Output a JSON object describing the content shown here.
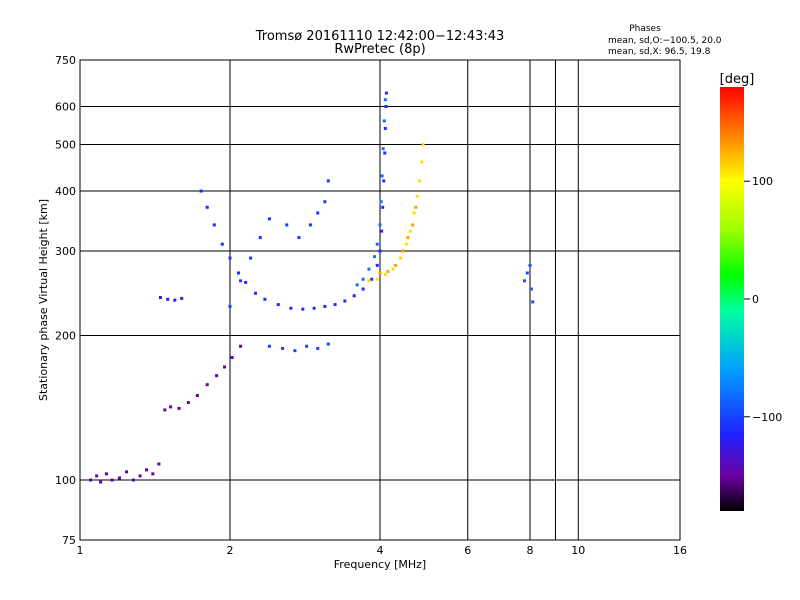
{
  "header": {
    "title": "Tromsø 20161110 12:42:00−12:43:43",
    "subtitle": "RwPretec (8p)",
    "stats_title": "Phases",
    "stats_o": "mean, sd,O:−100.5, 20.0",
    "stats_x": "mean, sd,X:  96.5, 19.8"
  },
  "colorbar": {
    "label": "[deg]",
    "min": -180,
    "max": 180,
    "ticks": [
      100,
      0,
      -100
    ],
    "tick_labels": [
      "100",
      "0",
      "−100"
    ],
    "stops": [
      {
        "v": -180,
        "c": "#000000"
      },
      {
        "v": -150,
        "c": "#6a00a0"
      },
      {
        "v": -115,
        "c": "#2020ff"
      },
      {
        "v": -60,
        "c": "#00a0ff"
      },
      {
        "v": -10,
        "c": "#00ffa0"
      },
      {
        "v": 20,
        "c": "#00ff00"
      },
      {
        "v": 60,
        "c": "#a0ff00"
      },
      {
        "v": 100,
        "c": "#ffff00"
      },
      {
        "v": 140,
        "c": "#ff8000"
      },
      {
        "v": 180,
        "c": "#ff0000"
      }
    ]
  },
  "chart_data": {
    "type": "scatter",
    "xlabel": "Frequency [MHz]",
    "ylabel": "Stationary phase Virtual Height [km]",
    "x_scale": "log",
    "y_scale": "log",
    "xlim": [
      1,
      16
    ],
    "ylim": [
      75,
      750
    ],
    "grid": true,
    "x_ticks": [
      1,
      2,
      4,
      6,
      8,
      10,
      16
    ],
    "x_tick_labels": [
      "1",
      "2",
      "4",
      "6",
      "8",
      "10",
      "16"
    ],
    "x_grid": [
      2,
      4,
      6,
      8,
      9,
      10
    ],
    "y_ticks": [
      75,
      100,
      200,
      300,
      400,
      500,
      600,
      750
    ],
    "y_tick_labels": [
      "75",
      "100",
      "200",
      "300",
      "400",
      "500",
      "600",
      "750"
    ],
    "y_grid": [
      100,
      200,
      300,
      400,
      500,
      600
    ],
    "series": [
      {
        "phase": -145,
        "points": [
          [
            1.05,
            100
          ],
          [
            1.08,
            102
          ],
          [
            1.1,
            99
          ],
          [
            1.13,
            103
          ],
          [
            1.16,
            100
          ],
          [
            1.2,
            101
          ],
          [
            1.24,
            104
          ],
          [
            1.28,
            100
          ],
          [
            1.32,
            102
          ],
          [
            1.36,
            105
          ],
          [
            1.4,
            103
          ],
          [
            1.44,
            108
          ]
        ]
      },
      {
        "phase": -150,
        "points": [
          [
            1.48,
            140
          ],
          [
            1.52,
            142
          ],
          [
            1.58,
            141
          ],
          [
            1.65,
            145
          ],
          [
            1.72,
            150
          ],
          [
            1.8,
            158
          ],
          [
            1.88,
            165
          ],
          [
            1.95,
            172
          ],
          [
            2.02,
            180
          ],
          [
            2.1,
            190
          ]
        ]
      },
      {
        "phase": -125,
        "points": [
          [
            1.45,
            240
          ],
          [
            1.5,
            238
          ],
          [
            1.55,
            237
          ],
          [
            1.6,
            239
          ]
        ]
      },
      {
        "phase": -110,
        "points": [
          [
            1.75,
            400
          ],
          [
            1.8,
            370
          ],
          [
            1.86,
            340
          ],
          [
            1.93,
            310
          ],
          [
            2.0,
            290
          ],
          [
            2.08,
            270
          ],
          [
            2.15,
            258
          ],
          [
            2.25,
            245
          ],
          [
            2.35,
            238
          ],
          [
            2.5,
            232
          ],
          [
            2.65,
            228
          ],
          [
            2.8,
            227
          ],
          [
            2.95,
            228
          ],
          [
            3.1,
            230
          ],
          [
            3.25,
            232
          ],
          [
            3.4,
            236
          ],
          [
            3.55,
            242
          ],
          [
            3.7,
            250
          ],
          [
            3.85,
            262
          ],
          [
            3.95,
            280
          ],
          [
            4.0,
            300
          ],
          [
            4.03,
            330
          ],
          [
            4.05,
            370
          ],
          [
            4.07,
            420
          ],
          [
            4.09,
            480
          ],
          [
            4.1,
            540
          ],
          [
            4.11,
            600
          ],
          [
            4.12,
            640
          ]
        ]
      },
      {
        "phase": -80,
        "points": [
          [
            3.6,
            255
          ],
          [
            3.7,
            262
          ],
          [
            3.8,
            275
          ],
          [
            3.9,
            292
          ],
          [
            3.95,
            310
          ],
          [
            4.0,
            340
          ],
          [
            4.02,
            380
          ],
          [
            4.04,
            430
          ],
          [
            4.06,
            490
          ],
          [
            4.08,
            560
          ],
          [
            4.1,
            620
          ]
        ]
      },
      {
        "phase": -105,
        "points": [
          [
            2.0,
            230
          ],
          [
            2.1,
            260
          ],
          [
            2.2,
            290
          ],
          [
            2.3,
            320
          ],
          [
            2.4,
            350
          ],
          [
            2.6,
            340
          ],
          [
            2.75,
            320
          ],
          [
            2.9,
            340
          ],
          [
            3.0,
            360
          ],
          [
            3.1,
            380
          ],
          [
            3.15,
            420
          ]
        ]
      },
      {
        "phase": -100,
        "points": [
          [
            2.4,
            190
          ],
          [
            2.55,
            188
          ],
          [
            2.7,
            186
          ],
          [
            2.85,
            190
          ],
          [
            3.0,
            188
          ],
          [
            3.15,
            192
          ]
        ]
      },
      {
        "phase": 110,
        "points": [
          [
            3.8,
            260
          ],
          [
            3.95,
            262
          ],
          [
            4.1,
            268
          ],
          [
            4.25,
            275
          ],
          [
            4.4,
            290
          ],
          [
            4.52,
            310
          ],
          [
            4.6,
            330
          ],
          [
            4.68,
            360
          ],
          [
            4.75,
            390
          ],
          [
            4.8,
            420
          ],
          [
            4.85,
            460
          ],
          [
            4.88,
            500
          ]
        ]
      },
      {
        "phase": 130,
        "points": [
          [
            4.0,
            270
          ],
          [
            4.15,
            272
          ],
          [
            4.3,
            280
          ],
          [
            4.45,
            300
          ],
          [
            4.55,
            320
          ],
          [
            4.65,
            340
          ],
          [
            4.72,
            370
          ]
        ]
      },
      {
        "phase": -95,
        "points": [
          [
            7.8,
            260
          ],
          [
            7.9,
            270
          ],
          [
            8.0,
            280
          ],
          [
            8.05,
            250
          ],
          [
            8.1,
            235
          ]
        ]
      }
    ]
  }
}
